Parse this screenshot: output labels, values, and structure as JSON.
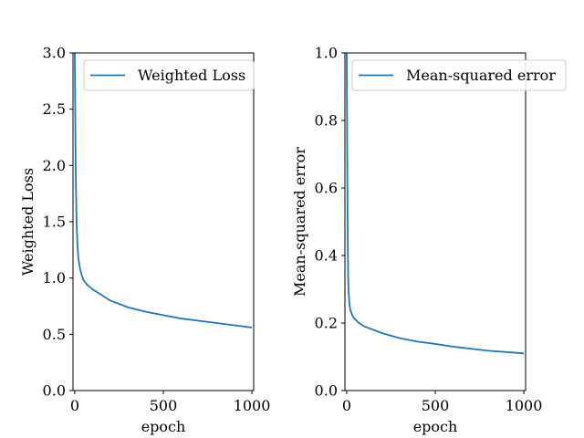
{
  "chart_data": [
    {
      "type": "line",
      "title": "",
      "xlabel": "epoch",
      "ylabel": "Weighted Loss",
      "xlim": [
        -10,
        1010
      ],
      "ylim": [
        0,
        3.0
      ],
      "xticks": [
        0,
        500,
        1000
      ],
      "yticks": [
        0,
        0.5,
        1.0,
        1.5,
        2.0,
        2.5,
        3.0
      ],
      "xtick_labels": [
        "0",
        "500",
        "1000"
      ],
      "ytick_labels": [
        "0.0",
        "0.5",
        "1.0",
        "1.5",
        "2.0",
        "2.5",
        "3.0"
      ],
      "legend": "top-right",
      "grid": false,
      "series": [
        {
          "name": "Weighted Loss",
          "color": "#1f77b4",
          "x": [
            0,
            2,
            5,
            10,
            15,
            20,
            30,
            40,
            50,
            70,
            100,
            150,
            200,
            300,
            400,
            500,
            600,
            700,
            800,
            900,
            1000
          ],
          "y": [
            3.0,
            2.6,
            2.0,
            1.5,
            1.3,
            1.18,
            1.08,
            1.02,
            0.98,
            0.94,
            0.9,
            0.85,
            0.8,
            0.74,
            0.7,
            0.67,
            0.64,
            0.62,
            0.6,
            0.58,
            0.56
          ]
        }
      ]
    },
    {
      "type": "line",
      "title": "",
      "xlabel": "epoch",
      "ylabel": "Mean-squared error",
      "xlim": [
        -10,
        1010
      ],
      "ylim": [
        0,
        1.0
      ],
      "xticks": [
        0,
        500,
        1000
      ],
      "yticks": [
        0,
        0.2,
        0.4,
        0.6,
        0.8,
        1.0
      ],
      "xtick_labels": [
        "0",
        "500",
        "1000"
      ],
      "ytick_labels": [
        "0.0",
        "0.2",
        "0.4",
        "0.6",
        "0.8",
        "1.0"
      ],
      "legend": "top-right",
      "grid": false,
      "series": [
        {
          "name": "Mean-squared error",
          "color": "#1f77b4",
          "x": [
            0,
            2,
            5,
            8,
            10,
            15,
            20,
            30,
            40,
            50,
            70,
            100,
            150,
            200,
            300,
            400,
            500,
            600,
            700,
            800,
            900,
            1000
          ],
          "y": [
            1.0,
            0.8,
            0.5,
            0.34,
            0.3,
            0.26,
            0.24,
            0.225,
            0.215,
            0.21,
            0.2,
            0.19,
            0.18,
            0.17,
            0.155,
            0.145,
            0.138,
            0.13,
            0.124,
            0.118,
            0.114,
            0.11
          ]
        }
      ]
    }
  ]
}
